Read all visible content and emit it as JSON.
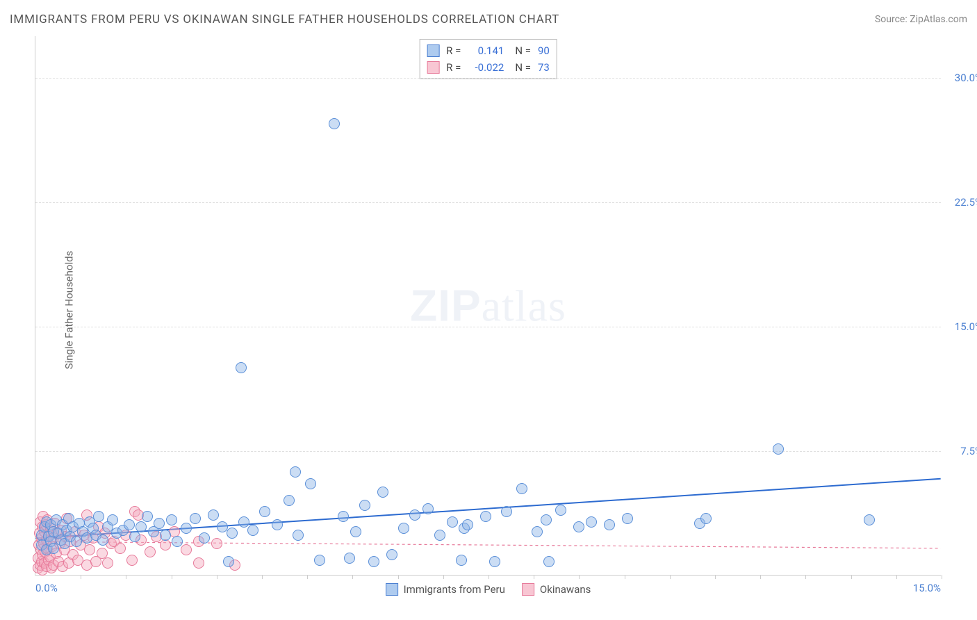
{
  "title": "IMMIGRANTS FROM PERU VS OKINAWAN SINGLE FATHER HOUSEHOLDS CORRELATION CHART",
  "source_label": "Source: ",
  "source_value": "ZipAtlas.com",
  "watermark_zip": "ZIP",
  "watermark_atlas": "atlas",
  "chart": {
    "type": "scatter",
    "xlim": [
      0,
      15
    ],
    "ylim": [
      0,
      32.5
    ],
    "x_origin_label": "0.0%",
    "x_max_label": "15.0%",
    "x_tick_step_minor": 0.75,
    "y_ticks": [
      {
        "val": 7.5,
        "label": "7.5%"
      },
      {
        "val": 15.0,
        "label": "15.0%"
      },
      {
        "val": 22.5,
        "label": "22.5%"
      },
      {
        "val": 30.0,
        "label": "30.0%"
      }
    ],
    "y_axis_title": "Single Father Households",
    "background_color": "#ffffff",
    "grid_color": "#e0e0e0",
    "marker_radius": 8,
    "series": {
      "blue": {
        "name": "Immigrants from Peru",
        "color_fill": "rgba(140,180,230,0.45)",
        "color_stroke": "#5a8fd8",
        "R": "0.141",
        "N": "90",
        "trend": {
          "y_at_x0": 2.2,
          "y_at_xmax": 5.8,
          "stroke": "#2d6bd0",
          "width": 2,
          "dash": "none"
        },
        "points": [
          [
            0.1,
            2.4
          ],
          [
            0.1,
            1.8
          ],
          [
            0.15,
            2.9
          ],
          [
            0.18,
            1.5
          ],
          [
            0.18,
            3.2
          ],
          [
            0.22,
            2.3
          ],
          [
            0.25,
            2.0
          ],
          [
            0.25,
            3.0
          ],
          [
            0.3,
            2.6
          ],
          [
            0.3,
            1.6
          ],
          [
            0.35,
            3.3
          ],
          [
            0.38,
            2.5
          ],
          [
            0.42,
            2.1
          ],
          [
            0.45,
            3.0
          ],
          [
            0.48,
            1.9
          ],
          [
            0.52,
            2.7
          ],
          [
            0.55,
            3.4
          ],
          [
            0.58,
            2.3
          ],
          [
            0.62,
            2.9
          ],
          [
            0.68,
            2.0
          ],
          [
            0.72,
            3.1
          ],
          [
            0.78,
            2.6
          ],
          [
            0.85,
            2.2
          ],
          [
            0.9,
            3.2
          ],
          [
            0.95,
            2.8
          ],
          [
            1.0,
            2.4
          ],
          [
            1.05,
            3.5
          ],
          [
            1.12,
            2.1
          ],
          [
            1.2,
            2.9
          ],
          [
            1.28,
            3.3
          ],
          [
            1.35,
            2.5
          ],
          [
            1.45,
            2.7
          ],
          [
            1.55,
            3.0
          ],
          [
            1.65,
            2.3
          ],
          [
            1.75,
            2.9
          ],
          [
            1.85,
            3.5
          ],
          [
            1.95,
            2.6
          ],
          [
            2.05,
            3.1
          ],
          [
            2.15,
            2.4
          ],
          [
            2.25,
            3.3
          ],
          [
            2.35,
            2.0
          ],
          [
            2.5,
            2.8
          ],
          [
            2.65,
            3.4
          ],
          [
            2.8,
            2.2
          ],
          [
            2.95,
            3.6
          ],
          [
            3.1,
            2.9
          ],
          [
            3.25,
            2.5
          ],
          [
            3.45,
            3.2
          ],
          [
            3.2,
            0.8
          ],
          [
            3.6,
            2.7
          ],
          [
            3.8,
            3.8
          ],
          [
            3.4,
            12.5
          ],
          [
            4.0,
            3.0
          ],
          [
            4.2,
            4.5
          ],
          [
            4.35,
            2.4
          ],
          [
            4.3,
            6.2
          ],
          [
            4.55,
            5.5
          ],
          [
            4.7,
            0.9
          ],
          [
            4.95,
            27.2
          ],
          [
            5.1,
            3.5
          ],
          [
            5.2,
            1.0
          ],
          [
            5.3,
            2.6
          ],
          [
            5.45,
            4.2
          ],
          [
            5.6,
            0.8
          ],
          [
            5.75,
            5.0
          ],
          [
            5.9,
            1.2
          ],
          [
            6.1,
            2.8
          ],
          [
            6.28,
            3.6
          ],
          [
            6.5,
            4.0
          ],
          [
            6.7,
            2.4
          ],
          [
            6.9,
            3.2
          ],
          [
            7.05,
            0.9
          ],
          [
            7.1,
            2.8
          ],
          [
            7.15,
            3.0
          ],
          [
            7.45,
            3.5
          ],
          [
            7.6,
            0.8
          ],
          [
            7.8,
            3.8
          ],
          [
            8.05,
            5.2
          ],
          [
            8.3,
            2.6
          ],
          [
            8.45,
            3.3
          ],
          [
            8.5,
            0.8
          ],
          [
            8.7,
            3.9
          ],
          [
            9.0,
            2.9
          ],
          [
            9.2,
            3.2
          ],
          [
            9.5,
            3.0
          ],
          [
            9.8,
            3.4
          ],
          [
            11.0,
            3.1
          ],
          [
            11.1,
            3.4
          ],
          [
            12.3,
            7.6
          ],
          [
            13.8,
            3.3
          ]
        ]
      },
      "pink": {
        "name": "Okinawans",
        "color_fill": "rgba(245,170,190,0.45)",
        "color_stroke": "#e77a9a",
        "R": "-0.022",
        "N": "73",
        "trend": {
          "y_at_x0": 2.0,
          "y_at_xmax": 1.6,
          "stroke": "#e77a9a",
          "width": 1.2,
          "dash": "4,4"
        },
        "points": [
          [
            0.05,
            0.4
          ],
          [
            0.05,
            1.0
          ],
          [
            0.06,
            1.8
          ],
          [
            0.07,
            2.5
          ],
          [
            0.08,
            0.6
          ],
          [
            0.08,
            3.2
          ],
          [
            0.09,
            1.5
          ],
          [
            0.1,
            0.8
          ],
          [
            0.1,
            2.2
          ],
          [
            0.11,
            2.9
          ],
          [
            0.12,
            1.2
          ],
          [
            0.12,
            0.3
          ],
          [
            0.13,
            3.5
          ],
          [
            0.14,
            1.9
          ],
          [
            0.15,
            0.7
          ],
          [
            0.15,
            2.6
          ],
          [
            0.16,
            1.4
          ],
          [
            0.17,
            3.0
          ],
          [
            0.18,
            0.5
          ],
          [
            0.18,
            2.1
          ],
          [
            0.2,
            1.6
          ],
          [
            0.2,
            3.3
          ],
          [
            0.22,
            0.9
          ],
          [
            0.22,
            2.4
          ],
          [
            0.24,
            1.1
          ],
          [
            0.25,
            2.8
          ],
          [
            0.26,
            0.4
          ],
          [
            0.28,
            1.7
          ],
          [
            0.3,
            2.2
          ],
          [
            0.3,
            0.6
          ],
          [
            0.32,
            3.1
          ],
          [
            0.34,
            1.3
          ],
          [
            0.36,
            2.5
          ],
          [
            0.38,
            0.8
          ],
          [
            0.4,
            1.9
          ],
          [
            0.42,
            2.7
          ],
          [
            0.45,
            0.5
          ],
          [
            0.48,
            1.5
          ],
          [
            0.5,
            2.3
          ],
          [
            0.52,
            3.4
          ],
          [
            0.55,
            0.7
          ],
          [
            0.58,
            2.0
          ],
          [
            0.62,
            1.2
          ],
          [
            0.65,
            2.6
          ],
          [
            0.7,
            0.9
          ],
          [
            0.75,
            1.8
          ],
          [
            0.8,
            2.4
          ],
          [
            0.85,
            0.6
          ],
          [
            0.85,
            3.6
          ],
          [
            0.9,
            1.5
          ],
          [
            0.95,
            2.2
          ],
          [
            1.0,
            0.8
          ],
          [
            1.05,
            2.9
          ],
          [
            1.1,
            1.3
          ],
          [
            1.15,
            2.5
          ],
          [
            1.2,
            0.7
          ],
          [
            1.25,
            1.9
          ],
          [
            1.3,
            2.0
          ],
          [
            1.4,
            1.6
          ],
          [
            1.5,
            2.4
          ],
          [
            1.6,
            0.9
          ],
          [
            1.65,
            3.8
          ],
          [
            1.7,
            3.6
          ],
          [
            1.75,
            2.1
          ],
          [
            1.9,
            1.4
          ],
          [
            2.0,
            2.3
          ],
          [
            2.15,
            1.8
          ],
          [
            2.3,
            2.6
          ],
          [
            2.5,
            1.5
          ],
          [
            2.7,
            2.0
          ],
          [
            2.7,
            0.7
          ],
          [
            3.0,
            1.9
          ],
          [
            3.3,
            0.6
          ]
        ]
      }
    }
  },
  "legend_top": {
    "r_label": "R =",
    "n_label": "N ="
  }
}
